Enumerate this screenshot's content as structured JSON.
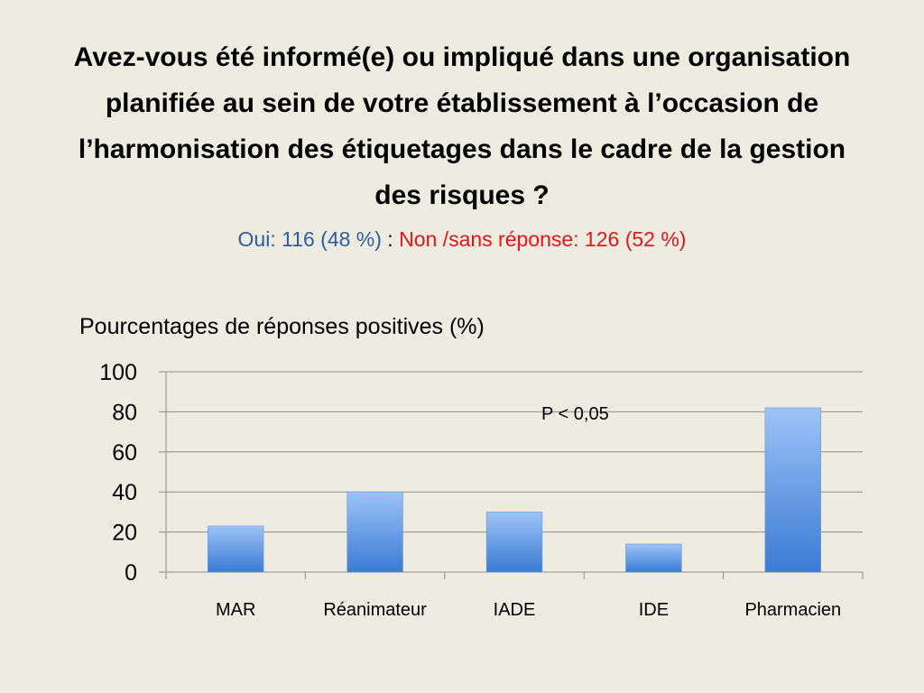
{
  "slide": {
    "title": "Avez-vous été informé(e) ou impliqué dans une organisation planifiée au sein de votre établissement à l’occasion de l’harmonisation des étiquetages dans le cadre de la gestion des risques ?",
    "subtitle_oui": "Oui:  116  (48 %)",
    "subtitle_sep": " : ",
    "subtitle_non": "Non /sans réponse: 126 (52 %)",
    "colors": {
      "background": "#eeece1",
      "oui": "#2e5d9f",
      "non": "#e8141b"
    }
  },
  "chart_data": {
    "type": "bar",
    "title": "Pourcentages de réponses positives  (%)",
    "categories": [
      "MAR",
      "Réanimateur",
      "IADE",
      "IDE",
      "Pharmacien"
    ],
    "values": [
      23,
      40,
      30,
      14,
      82
    ],
    "ylim": [
      0,
      100
    ],
    "yticks": [
      "0",
      "20",
      "40",
      "60",
      "80",
      "100"
    ],
    "grid": true,
    "annotation": "P < 0,05",
    "bar_color_top": "#9dc3f7",
    "bar_color_bottom": "#3a7bd5",
    "xlabel": "",
    "ylabel": ""
  }
}
